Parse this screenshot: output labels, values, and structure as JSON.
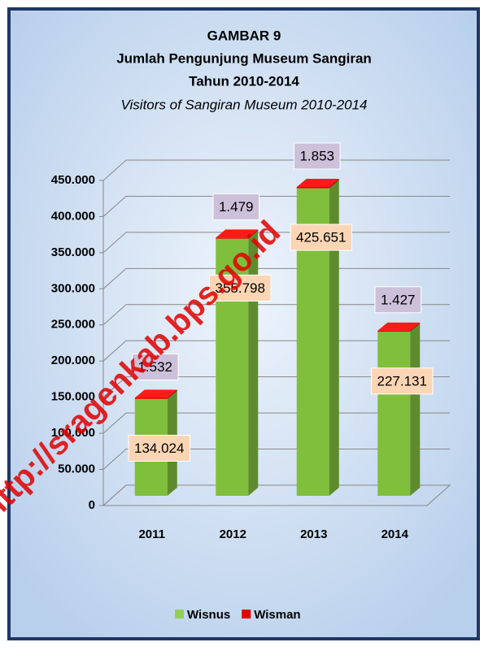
{
  "chart_data": {
    "type": "bar3d_stacked",
    "title": [
      "GAMBAR 9",
      "Jumlah Pengunjung Museum Sangiran",
      "Tahun 2010-2014"
    ],
    "subtitle": "Visitors  of  Sangiran Museum 2010-2014",
    "watermark": "http://sragenkab.bps.go.id",
    "categories": [
      "2011",
      "2012",
      "2013",
      "2014"
    ],
    "series": [
      {
        "name": "Wisnus",
        "color": "#92d050",
        "values": [
          134024,
          355798,
          425651,
          227131
        ],
        "value_labels": [
          "134.024",
          "355.798",
          "425.651",
          "227.131"
        ]
      },
      {
        "name": "Wisman",
        "color": "#e00000",
        "values": [
          1532,
          1479,
          1853,
          1427
        ],
        "value_labels": [
          "1.532",
          "1.479",
          "1.853",
          "1.427"
        ]
      }
    ],
    "ylim": [
      0,
      450000
    ],
    "yticks": [
      0,
      {
        "value": 50000,
        "label": "50.000"
      },
      {
        "value": 100000,
        "label": "100.000"
      },
      {
        "value": 150000,
        "label": "150.000"
      },
      {
        "value": 200000,
        "label": "200.000"
      },
      {
        "value": 250000,
        "label": "250.000"
      },
      {
        "value": 300000,
        "label": "300.000"
      },
      {
        "value": 350000,
        "label": "350.000"
      },
      {
        "value": 400000,
        "label": "400.000"
      },
      {
        "value": 450000,
        "label": "450.000"
      }
    ],
    "grid": true,
    "legend": "bottom"
  }
}
